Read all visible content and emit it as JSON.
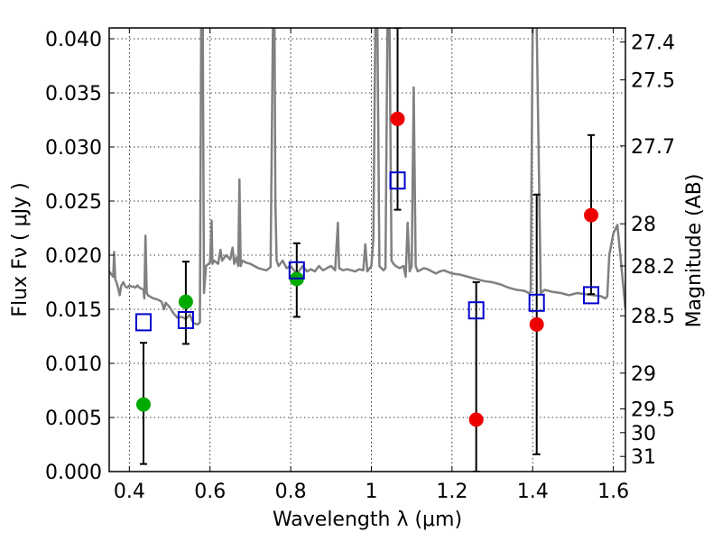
{
  "chart_data": {
    "type": "scatter",
    "title": "",
    "xlabel": "Wavelength  λ (μm)",
    "ylabel": "Flux  Fν  ( μJy )",
    "y2label": "Magnitude (AB)",
    "xlim": [
      0.35,
      1.63
    ],
    "ylim": [
      0.0,
      0.041
    ],
    "grid": true,
    "x_ticks": [
      0.4,
      0.6,
      0.8,
      1.0,
      1.2,
      1.4,
      1.6
    ],
    "x_tick_labels": [
      "0.4",
      "0.6",
      "0.8",
      "1",
      "1.2",
      "1.4",
      "1.6"
    ],
    "y_ticks": [
      0.0,
      0.005,
      0.01,
      0.015,
      0.02,
      0.025,
      0.03,
      0.035,
      0.04
    ],
    "y_tick_labels": [
      "0.000",
      "0.005",
      "0.010",
      "0.015",
      "0.020",
      "0.025",
      "0.030",
      "0.035",
      "0.040"
    ],
    "y2_ticks": [
      {
        "label": "27.4",
        "flux": 0.0397
      },
      {
        "label": "27.5",
        "flux": 0.0362
      },
      {
        "label": "27.7",
        "flux": 0.0301
      },
      {
        "label": "28",
        "flux": 0.0229
      },
      {
        "label": "28.2",
        "flux": 0.019
      },
      {
        "label": "28.5",
        "flux": 0.0144
      },
      {
        "label": "29",
        "flux": 0.0091
      },
      {
        "label": "29.5",
        "flux": 0.0058
      },
      {
        "label": "30",
        "flux": 0.0036
      },
      {
        "label": "31",
        "flux": 0.0014
      }
    ],
    "series": [
      {
        "name": "Green detections",
        "marker": "circle",
        "color": "#00aa00",
        "points": [
          {
            "x": 0.435,
            "y": 0.0062
          },
          {
            "x": 0.54,
            "y": 0.0157
          },
          {
            "x": 0.815,
            "y": 0.0178
          }
        ]
      },
      {
        "name": "Red detections",
        "marker": "circle",
        "color": "#ee0000",
        "points": [
          {
            "x": 1.065,
            "y": 0.0326
          },
          {
            "x": 1.26,
            "y": 0.0048
          },
          {
            "x": 1.41,
            "y": 0.0136
          },
          {
            "x": 1.545,
            "y": 0.0237
          }
        ]
      },
      {
        "name": "Model photometry",
        "marker": "square",
        "color": "#0000cc",
        "points": [
          {
            "x": 0.435,
            "y": 0.0138
          },
          {
            "x": 0.54,
            "y": 0.014
          },
          {
            "x": 0.815,
            "y": 0.0186
          },
          {
            "x": 1.065,
            "y": 0.0269
          },
          {
            "x": 1.26,
            "y": 0.0149
          },
          {
            "x": 1.41,
            "y": 0.0156
          },
          {
            "x": 1.545,
            "y": 0.0163
          }
        ]
      }
    ],
    "error_bars": [
      {
        "x": 0.435,
        "low": 0.0007,
        "high": 0.0119
      },
      {
        "x": 0.54,
        "low": 0.0118,
        "high": 0.0194
      },
      {
        "x": 0.815,
        "low": 0.0143,
        "high": 0.0211
      },
      {
        "x": 1.065,
        "low": 0.0242,
        "high": 0.041
      },
      {
        "x": 1.26,
        "low": 0.0,
        "high": 0.0175
      },
      {
        "x": 1.41,
        "low": 0.0016,
        "high": 0.0256
      },
      {
        "x": 1.545,
        "low": 0.0164,
        "high": 0.0311
      }
    ],
    "spectrum": {
      "name": "Model spectrum",
      "color": "#808080",
      "x": [
        0.35,
        0.36,
        0.362,
        0.365,
        0.368,
        0.372,
        0.376,
        0.38,
        0.385,
        0.39,
        0.395,
        0.4,
        0.405,
        0.41,
        0.415,
        0.42,
        0.425,
        0.43,
        0.435,
        0.437,
        0.44,
        0.443,
        0.446,
        0.45,
        0.46,
        0.47,
        0.48,
        0.486,
        0.49,
        0.5,
        0.51,
        0.52,
        0.53,
        0.54,
        0.545,
        0.55,
        0.555,
        0.56,
        0.57,
        0.575,
        0.578,
        0.58,
        0.582,
        0.585,
        0.59,
        0.6,
        0.604,
        0.606,
        0.61,
        0.62,
        0.626,
        0.63,
        0.64,
        0.65,
        0.656,
        0.66,
        0.665,
        0.67,
        0.673,
        0.676,
        0.68,
        0.69,
        0.7,
        0.72,
        0.74,
        0.75,
        0.756,
        0.758,
        0.76,
        0.762,
        0.765,
        0.77,
        0.78,
        0.79,
        0.8,
        0.81,
        0.82,
        0.83,
        0.84,
        0.85,
        0.86,
        0.87,
        0.88,
        0.89,
        0.9,
        0.91,
        0.917,
        0.92,
        0.93,
        0.94,
        0.95,
        0.96,
        0.97,
        0.98,
        0.985,
        0.99,
        1.0,
        1.005,
        1.01,
        1.015,
        1.02,
        1.025,
        1.03,
        1.035,
        1.04,
        1.045,
        1.05,
        1.055,
        1.06,
        1.07,
        1.08,
        1.085,
        1.09,
        1.095,
        1.1,
        1.105,
        1.11,
        1.115,
        1.12,
        1.13,
        1.14,
        1.15,
        1.16,
        1.17,
        1.18,
        1.2,
        1.22,
        1.24,
        1.26,
        1.28,
        1.3,
        1.32,
        1.34,
        1.36,
        1.38,
        1.39,
        1.395,
        1.4,
        1.405,
        1.41,
        1.42,
        1.43,
        1.45,
        1.47,
        1.49,
        1.51,
        1.53,
        1.55,
        1.57,
        1.58,
        1.585,
        1.59,
        1.6,
        1.61,
        1.62,
        1.63
      ],
      "y": [
        0.0185,
        0.018,
        0.0203,
        0.0178,
        0.0175,
        0.017,
        0.0163,
        0.0172,
        0.0175,
        0.0171,
        0.017,
        0.0172,
        0.0171,
        0.0171,
        0.017,
        0.0172,
        0.017,
        0.0169,
        0.0168,
        0.016,
        0.0218,
        0.0165,
        0.0163,
        0.0162,
        0.016,
        0.0159,
        0.0157,
        0.015,
        0.0156,
        0.0152,
        0.0146,
        0.0142,
        0.0143,
        0.0141,
        0.0143,
        0.0145,
        0.014,
        0.0137,
        0.0136,
        0.0138,
        0.041,
        0.041,
        0.041,
        0.0165,
        0.019,
        0.0193,
        0.0232,
        0.0192,
        0.0195,
        0.0192,
        0.0205,
        0.0195,
        0.02,
        0.0196,
        0.0207,
        0.0192,
        0.0198,
        0.019,
        0.027,
        0.019,
        0.0195,
        0.0193,
        0.0192,
        0.0188,
        0.0186,
        0.0189,
        0.0412,
        0.0412,
        0.0412,
        0.025,
        0.0195,
        0.019,
        0.0195,
        0.0188,
        0.019,
        0.0185,
        0.0185,
        0.019,
        0.0185,
        0.0187,
        0.0185,
        0.019,
        0.0186,
        0.0188,
        0.019,
        0.0186,
        0.023,
        0.0188,
        0.0186,
        0.0187,
        0.0186,
        0.0185,
        0.0187,
        0.0186,
        0.021,
        0.0185,
        0.019,
        0.0215,
        0.0412,
        0.0412,
        0.019,
        0.0188,
        0.0186,
        0.0188,
        0.0412,
        0.0412,
        0.0195,
        0.0192,
        0.019,
        0.0188,
        0.019,
        0.018,
        0.023,
        0.0185,
        0.019,
        0.0355,
        0.019,
        0.0185,
        0.0186,
        0.0188,
        0.0187,
        0.0185,
        0.0183,
        0.0185,
        0.0186,
        0.0183,
        0.0182,
        0.018,
        0.0178,
        0.0176,
        0.0175,
        0.0173,
        0.017,
        0.0168,
        0.0167,
        0.0165,
        0.0166,
        0.0412,
        0.0412,
        0.0412,
        0.0165,
        0.0168,
        0.0166,
        0.0165,
        0.0163,
        0.0165,
        0.0164,
        0.0163,
        0.0162,
        0.016,
        0.0162,
        0.02,
        0.022,
        0.0228,
        0.019,
        0.015
      ]
    }
  }
}
